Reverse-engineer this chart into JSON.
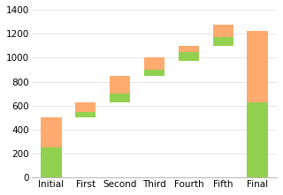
{
  "categories": [
    "Initial",
    "First",
    "Second",
    "Third",
    "Fourth",
    "Fifth",
    "Final"
  ],
  "base": [
    0,
    500,
    625,
    850,
    975,
    1100,
    0
  ],
  "green": [
    250,
    50,
    75,
    50,
    75,
    75,
    625
  ],
  "orange": [
    250,
    75,
    150,
    100,
    50,
    100,
    600
  ],
  "green_color": "#92D050",
  "orange_color": "#FFAA6E",
  "bg_color": "#FFFFFF",
  "ylim": [
    0,
    1400
  ],
  "yticks": [
    0,
    200,
    400,
    600,
    800,
    1000,
    1200,
    1400
  ],
  "bar_width": 0.6,
  "figsize": [
    3.2,
    2.21
  ],
  "dpi": 100,
  "tick_fontsize": 7.5,
  "grid_color": "#E0E0E0",
  "bottom_spine_color": "#BBBBBB"
}
